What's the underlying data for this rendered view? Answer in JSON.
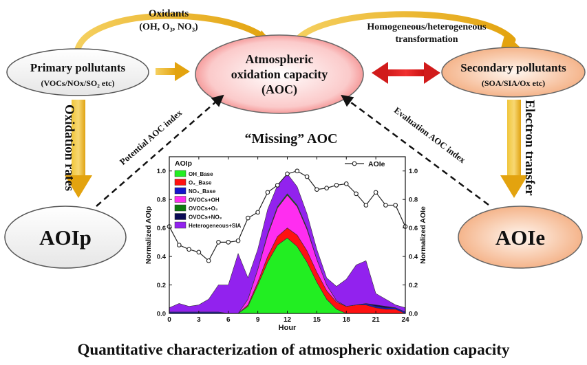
{
  "nodes": {
    "primary": {
      "title": "Primary pollutants",
      "subtitle": "(VOCs/NOx/SO₂ etc)"
    },
    "aoc": {
      "line1": "Atmospheric",
      "line2": "oxidation capacity",
      "line3": "(AOC)"
    },
    "secondary": {
      "title": "Secondary pollutants",
      "subtitle": "(SOA/SIA/Ox etc)"
    },
    "aoip": {
      "label": "AOIp"
    },
    "aoie": {
      "label": "AOIe"
    }
  },
  "edges": {
    "oxidants": {
      "line1": "Oxidants",
      "line2": "(OH, O₃, NO₃)"
    },
    "transformation": {
      "line1": "Homogeneous/heterogeneous",
      "line2": "transformation"
    },
    "oxidation_rates": "Oxidation rates",
    "electron_transfer": "Electron transfer",
    "potential_index": "Potential AOC index",
    "evaluation_index": "Evaluation AOC index"
  },
  "missing_title": "“Missing” AOC",
  "caption": "Quantitative characterization of atmospheric oxidation capacity",
  "colors": {
    "aoc_fill": "#f06a6a",
    "side_fill": "#f3a97a",
    "arrow_gold": "#e8ad16",
    "arrow_red": "#d11b1b"
  },
  "chart_data": {
    "type": "area",
    "title": "",
    "legend_title": "AOIp",
    "xlabel": "Hour",
    "ylabel": "Normalized AOIp",
    "ylabel_right": "Normalized AOIe",
    "xlim": [
      0,
      24
    ],
    "ylim": [
      0,
      1.1
    ],
    "xticks": [
      "0",
      "3",
      "6",
      "9",
      "12",
      "15",
      "18",
      "21",
      "24"
    ],
    "yticks": [
      "0.0",
      "0.2",
      "0.4",
      "0.6",
      "0.8",
      "1.0"
    ],
    "yticks_right": [
      "0.0",
      "0.2",
      "0.4",
      "0.6",
      "0.8",
      "1.0"
    ],
    "x": [
      0,
      1,
      2,
      3,
      4,
      5,
      6,
      7,
      8,
      9,
      10,
      11,
      12,
      13,
      14,
      15,
      16,
      17,
      18,
      19,
      20,
      21,
      22,
      23,
      24
    ],
    "series": [
      {
        "name": "OH_Base",
        "color": "#22ee22",
        "values": [
          0.0,
          0.0,
          0.0,
          0.0,
          0.0,
          0.0,
          0.0,
          0.0,
          0.05,
          0.2,
          0.36,
          0.48,
          0.53,
          0.47,
          0.36,
          0.22,
          0.1,
          0.03,
          0.0,
          0.0,
          0.0,
          0.0,
          0.0,
          0.0,
          0.0
        ]
      },
      {
        "name": "O₃_Base",
        "color": "#ff1111",
        "values": [
          0.0,
          0.0,
          0.0,
          0.0,
          0.0,
          0.0,
          0.0,
          0.0,
          0.01,
          0.02,
          0.04,
          0.06,
          0.07,
          0.08,
          0.08,
          0.07,
          0.06,
          0.05,
          0.05,
          0.06,
          0.06,
          0.04,
          0.03,
          0.03,
          0.0
        ]
      },
      {
        "name": "NO₃_Base",
        "color": "#1515cc",
        "values": [
          0.01,
          0.01,
          0.01,
          0.01,
          0.01,
          0.01,
          0.0,
          0.0,
          0.0,
          0.0,
          0.0,
          0.0,
          0.0,
          0.0,
          0.0,
          0.0,
          0.0,
          0.0,
          0.0,
          0.0,
          0.01,
          0.01,
          0.01,
          0.01,
          0.01
        ]
      },
      {
        "name": "OVOCs+OH",
        "color": "#ff2df0",
        "values": [
          0.0,
          0.0,
          0.0,
          0.0,
          0.0,
          0.0,
          0.0,
          0.0,
          0.04,
          0.09,
          0.15,
          0.2,
          0.23,
          0.2,
          0.15,
          0.09,
          0.04,
          0.01,
          0.0,
          0.0,
          0.0,
          0.0,
          0.0,
          0.0,
          0.0
        ]
      },
      {
        "name": "OVOCs+O₂",
        "color": "#0c7a0c",
        "values": [
          0.0,
          0.0,
          0.0,
          0.0,
          0.0,
          0.0,
          0.0,
          0.0,
          0.0,
          0.0,
          0.01,
          0.01,
          0.01,
          0.01,
          0.01,
          0.0,
          0.0,
          0.0,
          0.0,
          0.0,
          0.0,
          0.0,
          0.0,
          0.0,
          0.0
        ]
      },
      {
        "name": "OVOCs+NO₃",
        "color": "#0a0a55",
        "values": [
          0.0,
          0.0,
          0.0,
          0.0,
          0.0,
          0.0,
          0.0,
          0.0,
          0.0,
          0.0,
          0.0,
          0.0,
          0.0,
          0.0,
          0.0,
          0.0,
          0.0,
          0.0,
          0.0,
          0.0,
          0.0,
          0.01,
          0.01,
          0.0,
          0.0
        ]
      },
      {
        "name": "Heterogeneous+SIA",
        "color": "#9222ee",
        "values": [
          0.03,
          0.06,
          0.04,
          0.05,
          0.09,
          0.19,
          0.2,
          0.42,
          0.15,
          0.14,
          0.17,
          0.15,
          0.14,
          0.13,
          0.1,
          0.07,
          0.05,
          0.1,
          0.19,
          0.28,
          0.3,
          0.08,
          0.05,
          0.02,
          0.03
        ]
      }
    ],
    "line_series": {
      "name": "AOIe",
      "color": "#222222",
      "values": [
        0.61,
        0.48,
        0.45,
        0.43,
        0.37,
        0.5,
        0.5,
        0.51,
        0.67,
        0.71,
        0.85,
        0.9,
        0.98,
        1.0,
        0.96,
        0.87,
        0.88,
        0.9,
        0.91,
        0.84,
        0.76,
        0.85,
        0.76,
        0.76,
        0.61
      ]
    },
    "grid": false,
    "legend_position": "top-left"
  }
}
